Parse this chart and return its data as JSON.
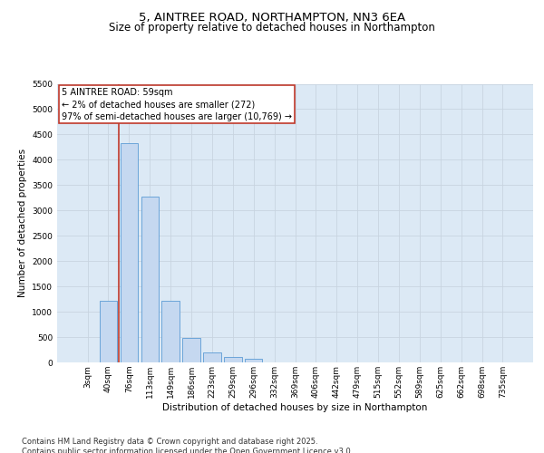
{
  "title_line1": "5, AINTREE ROAD, NORTHAMPTON, NN3 6EA",
  "title_line2": "Size of property relative to detached houses in Northampton",
  "xlabel": "Distribution of detached houses by size in Northampton",
  "ylabel": "Number of detached properties",
  "categories": [
    "3sqm",
    "40sqm",
    "76sqm",
    "113sqm",
    "149sqm",
    "186sqm",
    "223sqm",
    "259sqm",
    "296sqm",
    "332sqm",
    "369sqm",
    "406sqm",
    "442sqm",
    "479sqm",
    "515sqm",
    "552sqm",
    "589sqm",
    "625sqm",
    "662sqm",
    "698sqm",
    "735sqm"
  ],
  "values": [
    0,
    1220,
    4320,
    3280,
    1220,
    480,
    200,
    100,
    70,
    0,
    0,
    0,
    0,
    0,
    0,
    0,
    0,
    0,
    0,
    0,
    0
  ],
  "bar_color": "#c5d8f0",
  "bar_edge_color": "#5b9bd5",
  "vline_x": 1.5,
  "vline_color": "#c0392b",
  "annotation_text": "5 AINTREE ROAD: 59sqm\n← 2% of detached houses are smaller (272)\n97% of semi-detached houses are larger (10,769) →",
  "annotation_box_color": "white",
  "annotation_box_edge_color": "#c0392b",
  "ylim": [
    0,
    5500
  ],
  "yticks": [
    0,
    500,
    1000,
    1500,
    2000,
    2500,
    3000,
    3500,
    4000,
    4500,
    5000,
    5500
  ],
  "grid_color": "#c8d4e0",
  "background_color": "#dce9f5",
  "footer_text": "Contains HM Land Registry data © Crown copyright and database right 2025.\nContains public sector information licensed under the Open Government Licence v3.0.",
  "title_fontsize": 9.5,
  "subtitle_fontsize": 8.5,
  "axis_label_fontsize": 7.5,
  "tick_fontsize": 6.5,
  "annotation_fontsize": 7,
  "footer_fontsize": 6
}
